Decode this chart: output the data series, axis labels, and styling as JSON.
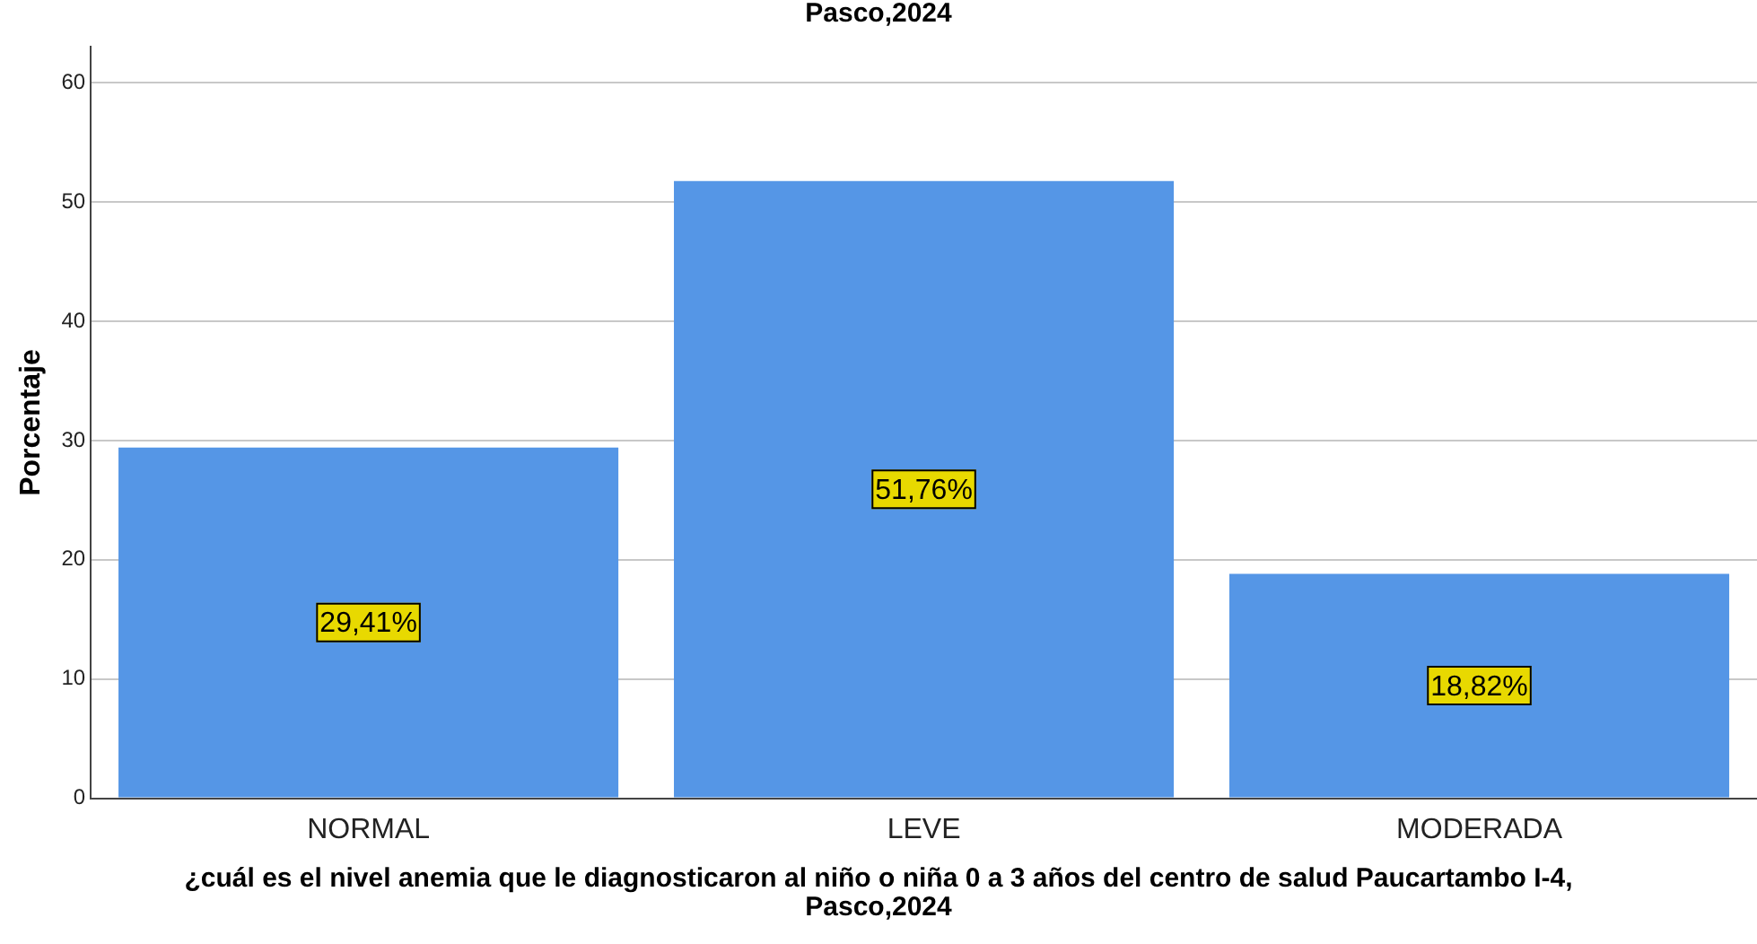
{
  "chart_data": {
    "type": "bar",
    "title": "Pasco,2024",
    "xlabel": "¿cuál es el nivel anemia que le diagnosticaron al niño o niña 0 a 3 años del centro de salud Paucartambo I-4, Pasco,2024",
    "ylabel": "Porcentaje",
    "categories": [
      "NORMAL",
      "LEVE",
      "MODERADA"
    ],
    "values": [
      29.41,
      51.76,
      18.82
    ],
    "value_labels": [
      "29,41%",
      "51,76%",
      "18,82%"
    ],
    "color": "#5596e6",
    "ylim": [
      0,
      63
    ],
    "yticks": [
      0,
      10,
      20,
      30,
      40,
      50,
      60
    ],
    "grid": "y",
    "legend": false
  }
}
